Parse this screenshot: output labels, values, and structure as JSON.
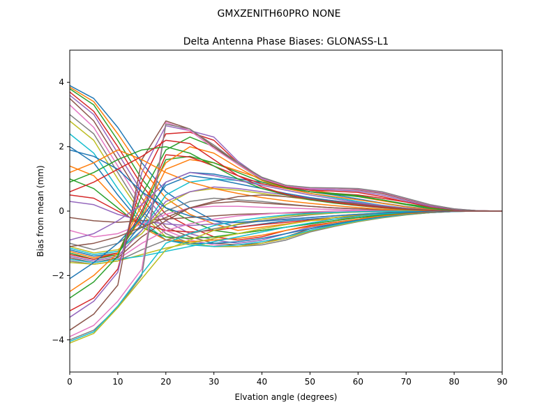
{
  "figure": {
    "suptitle": "GMXZENITH60PRO  NONE"
  },
  "chart_data": {
    "type": "line",
    "title": "Delta Antenna Phase Biases: GLONASS-L1",
    "xlabel": "Elvation angle (degrees)",
    "ylabel": "Bias from mean (mm)",
    "xlim": [
      0,
      90
    ],
    "ylim": [
      -5,
      5
    ],
    "xticks": [
      0,
      10,
      20,
      30,
      40,
      50,
      60,
      70,
      80,
      90
    ],
    "yticks": [
      -4,
      -2,
      0,
      2,
      4
    ],
    "grid": false,
    "x": [
      0,
      5,
      10,
      15,
      20,
      25,
      30,
      35,
      40,
      45,
      50,
      55,
      60,
      65,
      70,
      75,
      80,
      85,
      90
    ],
    "colors": [
      "#1f77b4",
      "#ff7f0e",
      "#2ca02c",
      "#d62728",
      "#9467bd",
      "#8c564b",
      "#e377c2",
      "#7f7f7f",
      "#bcbd22",
      "#17becf"
    ],
    "series": [
      {
        "values": [
          3.9,
          3.5,
          2.6,
          1.5,
          0.6,
          0.1,
          -0.3,
          -0.5,
          -0.4,
          -0.3,
          -0.25,
          -0.2,
          -0.15,
          -0.1,
          -0.05,
          0.0,
          0.0,
          0.0,
          0.0
        ]
      },
      {
        "values": [
          3.85,
          3.4,
          2.4,
          1.3,
          0.4,
          -0.1,
          -0.4,
          -0.6,
          -0.5,
          -0.4,
          -0.3,
          -0.25,
          -0.2,
          -0.12,
          -0.06,
          -0.02,
          0.0,
          0.0,
          0.0
        ]
      },
      {
        "values": [
          3.8,
          3.3,
          2.2,
          1.0,
          0.1,
          -0.3,
          -0.6,
          -0.7,
          -0.6,
          -0.5,
          -0.4,
          -0.3,
          -0.2,
          -0.15,
          -0.08,
          -0.03,
          0.0,
          0.0,
          0.0
        ]
      },
      {
        "values": [
          3.7,
          3.1,
          2.0,
          0.8,
          -0.1,
          -0.5,
          -0.8,
          -0.9,
          -0.8,
          -0.6,
          -0.45,
          -0.35,
          -0.25,
          -0.15,
          -0.08,
          -0.03,
          0.0,
          0.0,
          0.0
        ]
      },
      {
        "values": [
          3.6,
          3.0,
          1.8,
          0.6,
          -0.3,
          -0.7,
          -0.9,
          -1.0,
          -0.9,
          -0.7,
          -0.5,
          -0.4,
          -0.28,
          -0.18,
          -0.1,
          -0.04,
          0.0,
          0.0,
          0.0
        ]
      },
      {
        "values": [
          3.5,
          2.8,
          1.6,
          0.4,
          -0.5,
          -0.8,
          -1.0,
          -1.05,
          -1.0,
          -0.8,
          -0.55,
          -0.42,
          -0.3,
          -0.2,
          -0.1,
          -0.05,
          -0.01,
          0.0,
          0.0
        ]
      },
      {
        "values": [
          3.3,
          2.6,
          1.4,
          0.2,
          -0.6,
          -0.9,
          -1.05,
          -1.1,
          -1.0,
          -0.85,
          -0.6,
          -0.45,
          -0.32,
          -0.2,
          -0.11,
          -0.05,
          -0.01,
          0.0,
          0.0
        ]
      },
      {
        "values": [
          3.0,
          2.4,
          1.2,
          0.0,
          -0.7,
          -1.0,
          -1.1,
          -1.1,
          -1.05,
          -0.9,
          -0.65,
          -0.48,
          -0.33,
          -0.21,
          -0.12,
          -0.05,
          -0.01,
          0.0,
          0.0
        ]
      },
      {
        "values": [
          2.8,
          2.2,
          1.0,
          -0.1,
          -0.8,
          -1.0,
          -1.1,
          -1.1,
          -1.0,
          -0.85,
          -0.62,
          -0.46,
          -0.32,
          -0.2,
          -0.11,
          -0.05,
          -0.01,
          0.0,
          0.0
        ]
      },
      {
        "values": [
          2.4,
          1.8,
          0.7,
          -0.3,
          -0.9,
          -1.05,
          -1.1,
          -1.05,
          -0.95,
          -0.8,
          -0.6,
          -0.44,
          -0.3,
          -0.19,
          -0.1,
          -0.04,
          -0.01,
          0.0,
          0.0
        ]
      },
      {
        "values": [
          2.0,
          1.5,
          0.5,
          -0.4,
          -0.9,
          -1.0,
          -1.0,
          -0.95,
          -0.85,
          -0.7,
          -0.55,
          -0.4,
          -0.28,
          -0.17,
          -0.09,
          -0.04,
          -0.01,
          0.0,
          0.0
        ]
      },
      {
        "values": [
          1.4,
          1.1,
          0.3,
          -0.5,
          -0.9,
          -0.95,
          -0.9,
          -0.85,
          -0.75,
          -0.6,
          -0.48,
          -0.36,
          -0.25,
          -0.15,
          -0.08,
          -0.03,
          0.0,
          0.0,
          0.0
        ]
      },
      {
        "values": [
          1.0,
          0.7,
          0.1,
          -0.5,
          -0.8,
          -0.85,
          -0.8,
          -0.7,
          -0.6,
          -0.5,
          -0.4,
          -0.3,
          -0.2,
          -0.12,
          -0.06,
          -0.02,
          0.0,
          0.0,
          0.0
        ]
      },
      {
        "values": [
          0.5,
          0.4,
          0.0,
          -0.4,
          -0.6,
          -0.65,
          -0.6,
          -0.5,
          -0.42,
          -0.35,
          -0.28,
          -0.2,
          -0.14,
          -0.09,
          -0.05,
          -0.02,
          0.0,
          0.0,
          0.0
        ]
      },
      {
        "values": [
          0.3,
          0.2,
          -0.1,
          -0.3,
          -0.4,
          -0.45,
          -0.4,
          -0.35,
          -0.3,
          -0.25,
          -0.2,
          -0.15,
          -0.1,
          -0.06,
          -0.03,
          -0.01,
          0.0,
          0.0,
          0.0
        ]
      },
      {
        "values": [
          -0.2,
          -0.3,
          -0.35,
          -0.3,
          -0.25,
          -0.2,
          -0.15,
          -0.1,
          -0.08,
          -0.06,
          -0.05,
          -0.04,
          -0.03,
          -0.02,
          -0.01,
          0.0,
          0.0,
          0.0,
          0.0
        ]
      },
      {
        "values": [
          -0.6,
          -0.8,
          -0.7,
          -0.4,
          -0.1,
          0.1,
          0.15,
          0.15,
          0.12,
          0.1,
          0.07,
          0.05,
          0.03,
          0.02,
          0.01,
          0.0,
          0.0,
          0.0,
          0.0
        ]
      },
      {
        "values": [
          -1.0,
          -1.2,
          -1.0,
          -0.5,
          0.0,
          0.3,
          0.4,
          0.35,
          0.3,
          0.22,
          0.15,
          0.1,
          0.07,
          0.04,
          0.02,
          0.01,
          0.0,
          0.0,
          0.0
        ]
      },
      {
        "values": [
          -1.1,
          -1.3,
          -1.2,
          -0.7,
          0.2,
          0.6,
          0.7,
          0.65,
          0.55,
          0.45,
          0.35,
          0.27,
          0.2,
          0.12,
          0.06,
          0.02,
          0.0,
          0.0,
          0.0
        ]
      },
      {
        "values": [
          -1.15,
          -1.35,
          -1.25,
          -0.6,
          0.5,
          0.9,
          1.0,
          0.95,
          0.85,
          0.7,
          0.55,
          0.42,
          0.3,
          0.18,
          0.09,
          0.03,
          0.0,
          0.0,
          0.0
        ]
      },
      {
        "values": [
          -1.2,
          -1.4,
          -1.3,
          -0.4,
          0.9,
          1.2,
          1.15,
          1.0,
          0.9,
          0.75,
          0.6,
          0.5,
          0.38,
          0.25,
          0.14,
          0.06,
          0.01,
          0.0,
          0.0
        ]
      },
      {
        "values": [
          -1.25,
          -1.45,
          -1.3,
          -0.2,
          1.3,
          1.6,
          1.5,
          1.25,
          1.0,
          0.8,
          0.65,
          0.55,
          0.45,
          0.32,
          0.2,
          0.1,
          0.03,
          0.0,
          0.0
        ]
      },
      {
        "values": [
          -1.3,
          -1.5,
          -1.35,
          -0.1,
          1.6,
          1.7,
          1.5,
          1.2,
          0.9,
          0.72,
          0.6,
          0.52,
          0.45,
          0.35,
          0.22,
          0.12,
          0.04,
          0.01,
          0.0
        ]
      },
      {
        "values": [
          -1.35,
          -1.5,
          -1.3,
          0.0,
          1.75,
          1.68,
          1.4,
          1.1,
          0.85,
          0.7,
          0.6,
          0.55,
          0.5,
          0.4,
          0.28,
          0.15,
          0.06,
          0.01,
          0.0
        ]
      },
      {
        "values": [
          -1.4,
          -1.55,
          -1.4,
          -0.6,
          0.3,
          0.6,
          0.75,
          0.7,
          0.6,
          0.5,
          0.4,
          0.32,
          0.25,
          0.16,
          0.08,
          0.03,
          0.0,
          0.0,
          0.0
        ]
      },
      {
        "values": [
          -1.45,
          -1.6,
          -1.45,
          -0.8,
          -0.3,
          0.1,
          0.25,
          0.3,
          0.25,
          0.2,
          0.15,
          0.1,
          0.07,
          0.04,
          0.02,
          0.0,
          0.0,
          0.0,
          0.0
        ]
      },
      {
        "values": [
          -1.5,
          -1.6,
          -1.5,
          -1.0,
          -0.6,
          -0.4,
          -0.25,
          -0.15,
          -0.1,
          -0.05,
          -0.02,
          0.0,
          0.01,
          0.01,
          0.0,
          0.0,
          0.0,
          0.0,
          0.0
        ]
      },
      {
        "values": [
          -1.55,
          -1.65,
          -1.55,
          -1.2,
          -0.9,
          -0.7,
          -0.55,
          -0.42,
          -0.3,
          -0.2,
          -0.12,
          -0.06,
          -0.02,
          0.0,
          0.0,
          0.0,
          0.0,
          0.0,
          0.0
        ]
      },
      {
        "values": [
          -1.6,
          -1.65,
          -1.55,
          -1.35,
          -1.15,
          -1.0,
          -0.85,
          -0.7,
          -0.55,
          -0.42,
          -0.3,
          -0.2,
          -0.12,
          -0.06,
          -0.02,
          0.0,
          0.0,
          0.0,
          0.0
        ]
      },
      {
        "values": [
          -1.5,
          -1.6,
          -1.5,
          -1.4,
          -1.25,
          -1.1,
          -0.95,
          -0.8,
          -0.65,
          -0.5,
          -0.37,
          -0.25,
          -0.16,
          -0.09,
          -0.04,
          -0.01,
          0.0,
          0.0,
          0.0
        ]
      },
      {
        "values": [
          -2.1,
          -1.6,
          -1.0,
          -0.2,
          0.8,
          1.1,
          1.0,
          0.85,
          0.7,
          0.55,
          0.42,
          0.32,
          0.22,
          0.13,
          0.06,
          0.02,
          0.0,
          0.0,
          0.0
        ]
      },
      {
        "values": [
          -2.5,
          -2.0,
          -1.3,
          0.2,
          1.5,
          2.0,
          1.8,
          1.35,
          0.95,
          0.7,
          0.55,
          0.45,
          0.35,
          0.24,
          0.13,
          0.05,
          0.01,
          0.0,
          0.0
        ]
      },
      {
        "values": [
          -2.7,
          -2.2,
          -1.4,
          0.5,
          1.9,
          2.3,
          2.0,
          1.45,
          0.98,
          0.72,
          0.6,
          0.55,
          0.48,
          0.35,
          0.2,
          0.08,
          0.02,
          0.0,
          0.0
        ]
      },
      {
        "values": [
          -3.1,
          -2.7,
          -1.8,
          0.9,
          2.4,
          2.45,
          2.2,
          1.5,
          1.0,
          0.75,
          0.65,
          0.62,
          0.58,
          0.45,
          0.28,
          0.13,
          0.04,
          0.0,
          0.0
        ]
      },
      {
        "values": [
          -3.3,
          -2.8,
          -1.9,
          1.2,
          2.65,
          2.5,
          2.3,
          1.55,
          1.02,
          0.78,
          0.68,
          0.66,
          0.62,
          0.5,
          0.32,
          0.15,
          0.05,
          0.01,
          0.0
        ]
      },
      {
        "values": [
          -3.7,
          -3.2,
          -2.3,
          1.6,
          2.8,
          2.55,
          2.0,
          1.5,
          1.05,
          0.8,
          0.72,
          0.7,
          0.66,
          0.55,
          0.36,
          0.18,
          0.06,
          0.01,
          0.0
        ]
      },
      {
        "values": [
          -3.9,
          -3.55,
          -2.8,
          -1.8,
          2.75,
          2.5,
          1.95,
          1.45,
          1.0,
          0.78,
          0.7,
          0.7,
          0.68,
          0.58,
          0.38,
          0.19,
          0.07,
          0.01,
          0.0
        ]
      },
      {
        "values": [
          -4.0,
          -3.7,
          -3.0,
          -2.0,
          2.7,
          2.55,
          2.05,
          1.5,
          1.05,
          0.8,
          0.73,
          0.72,
          0.7,
          0.6,
          0.4,
          0.2,
          0.07,
          0.01,
          0.0
        ]
      },
      {
        "values": [
          -4.1,
          -3.8,
          -3.0,
          -2.1,
          -1.2,
          -0.9,
          -0.6,
          -0.4,
          -0.25,
          -0.15,
          -0.1,
          -0.06,
          -0.03,
          -0.01,
          0.0,
          0.0,
          0.0,
          0.0,
          0.0
        ]
      },
      {
        "values": [
          -4.05,
          -3.75,
          -2.95,
          -1.95,
          -1.0,
          -0.7,
          -0.45,
          -0.3,
          -0.2,
          -0.12,
          -0.07,
          -0.04,
          -0.02,
          -0.01,
          0.0,
          0.0,
          0.0,
          0.0,
          0.0
        ]
      },
      {
        "values": [
          1.9,
          1.7,
          1.3,
          0.6,
          0.1,
          -0.15,
          -0.3,
          -0.35,
          -0.32,
          -0.26,
          -0.2,
          -0.15,
          -0.1,
          -0.06,
          -0.03,
          -0.01,
          0.0,
          0.0,
          0.0
        ]
      },
      {
        "values": [
          1.2,
          1.5,
          1.9,
          1.6,
          1.2,
          0.9,
          0.7,
          0.55,
          0.42,
          0.32,
          0.24,
          0.17,
          0.11,
          0.06,
          0.03,
          0.01,
          0.0,
          0.0,
          0.0
        ]
      },
      {
        "values": [
          0.9,
          1.2,
          1.6,
          1.9,
          2.0,
          1.8,
          1.4,
          1.0,
          0.7,
          0.5,
          0.35,
          0.25,
          0.17,
          0.1,
          0.05,
          0.02,
          0.0,
          0.0,
          0.0
        ]
      },
      {
        "values": [
          0.6,
          0.9,
          1.3,
          1.7,
          2.2,
          2.1,
          1.6,
          1.1,
          0.75,
          0.52,
          0.37,
          0.27,
          0.18,
          0.11,
          0.06,
          0.02,
          0.0,
          0.0,
          0.0
        ]
      },
      {
        "values": [
          -0.9,
          -0.7,
          -0.3,
          0.2,
          0.9,
          1.2,
          1.1,
          0.95,
          0.8,
          0.65,
          0.5,
          0.38,
          0.27,
          0.17,
          0.09,
          0.03,
          0.0,
          0.0,
          0.0
        ]
      },
      {
        "values": [
          -1.1,
          -1.0,
          -0.8,
          -0.5,
          -0.2,
          0.1,
          0.3,
          0.45,
          0.5,
          0.45,
          0.38,
          0.3,
          0.22,
          0.14,
          0.07,
          0.03,
          0.0,
          0.0,
          0.0
        ]
      }
    ]
  }
}
